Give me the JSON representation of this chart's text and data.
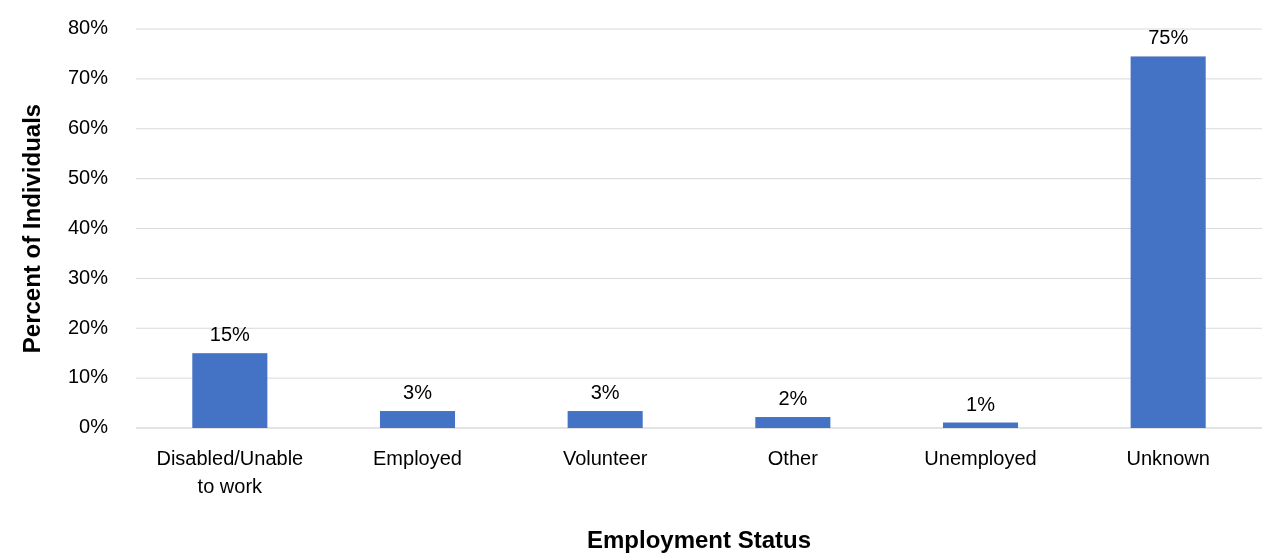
{
  "chart_data": {
    "type": "bar",
    "xlabel": "Employment Status",
    "ylabel": "Percent of Individuals",
    "categories": [
      "Disabled/Unable to work",
      "Employed",
      "Volunteer",
      "Other",
      "Unemployed",
      "Unknown"
    ],
    "values": [
      15,
      3.4,
      3.4,
      2.2,
      1.1,
      74.5
    ],
    "value_labels": [
      "15%",
      "3%",
      "3%",
      "2%",
      "1%",
      "75%"
    ],
    "color": "#4472c4",
    "ylim": [
      0,
      80
    ],
    "yticks": [
      {
        "value": 0,
        "label": "0%"
      },
      {
        "value": 10,
        "label": "10%"
      },
      {
        "value": 20,
        "label": "20%"
      },
      {
        "value": 30,
        "label": "30%"
      },
      {
        "value": 40,
        "label": "40%"
      },
      {
        "value": 50,
        "label": "50%"
      },
      {
        "value": 60,
        "label": "60%"
      },
      {
        "value": 70,
        "label": "70%"
      },
      {
        "value": 80,
        "label": "80%"
      }
    ],
    "grid": "y"
  }
}
